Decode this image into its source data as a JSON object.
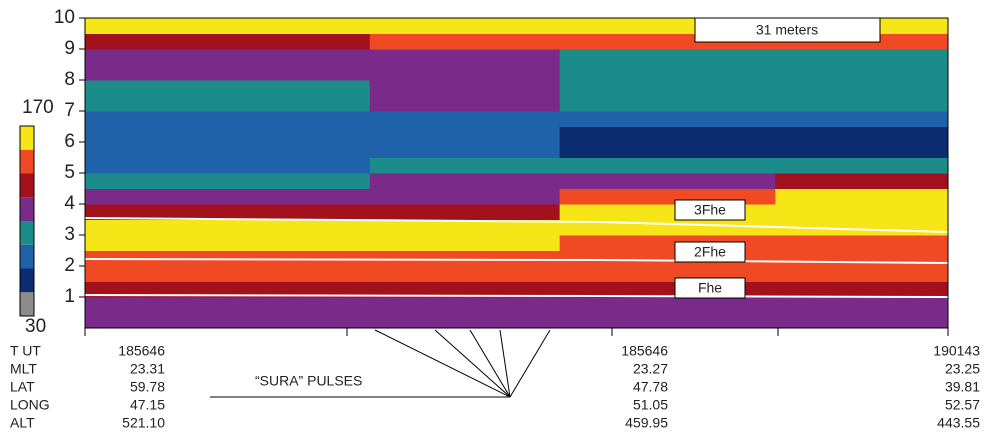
{
  "chart_data": {
    "type": "heatmap",
    "ylim": [
      0,
      10
    ],
    "yticks": [
      1,
      2,
      3,
      4,
      5,
      6,
      7,
      8,
      9,
      10
    ],
    "zlim": [
      30,
      170
    ],
    "colors": [
      "#8c8c8c",
      "#0b2c6e",
      "#1f62aa",
      "#1b8c8a",
      "#7a2a88",
      "#a3121c",
      "#ef4a24",
      "#f6e618"
    ],
    "z": [
      [
        105,
        108,
        105,
        105
      ],
      [
        110,
        112,
        110,
        110
      ],
      [
        130,
        132,
        125,
        122
      ],
      [
        140,
        142,
        140,
        140
      ],
      [
        145,
        145,
        145,
        145
      ],
      [
        155,
        155,
        150,
        150
      ],
      [
        165,
        165,
        165,
        165
      ],
      [
        120,
        125,
        160,
        165
      ],
      [
        100,
        102,
        140,
        155
      ],
      [
        95,
        100,
        115,
        130
      ],
      [
        80,
        90,
        95,
        95
      ],
      [
        75,
        80,
        60,
        60
      ],
      [
        75,
        80,
        58,
        58
      ],
      [
        78,
        80,
        75,
        75
      ],
      [
        95,
        105,
        90,
        90
      ],
      [
        95,
        110,
        95,
        95
      ],
      [
        100,
        115,
        95,
        95
      ],
      [
        100,
        110,
        95,
        95
      ],
      [
        130,
        140,
        140,
        140
      ],
      [
        165,
        165,
        165,
        165
      ]
    ],
    "annotations": [
      "31 meters",
      "3Fhe",
      "2Fhe",
      "Fhe",
      "“SURA” PULSES"
    ]
  },
  "table": {
    "rows": [
      {
        "label": "T UT",
        "values": [
          "185646",
          "185646",
          "190143"
        ]
      },
      {
        "label": "MLT",
        "values": [
          "23.31",
          "23.27",
          "23.25"
        ]
      },
      {
        "label": "LAT",
        "values": [
          "59.78",
          "47.78",
          "39.81"
        ]
      },
      {
        "label": "LONG",
        "values": [
          "47.15",
          "51.05",
          "52.57"
        ]
      },
      {
        "label": "ALT",
        "values": [
          "521.10",
          "459.95",
          "443.55"
        ]
      }
    ]
  }
}
